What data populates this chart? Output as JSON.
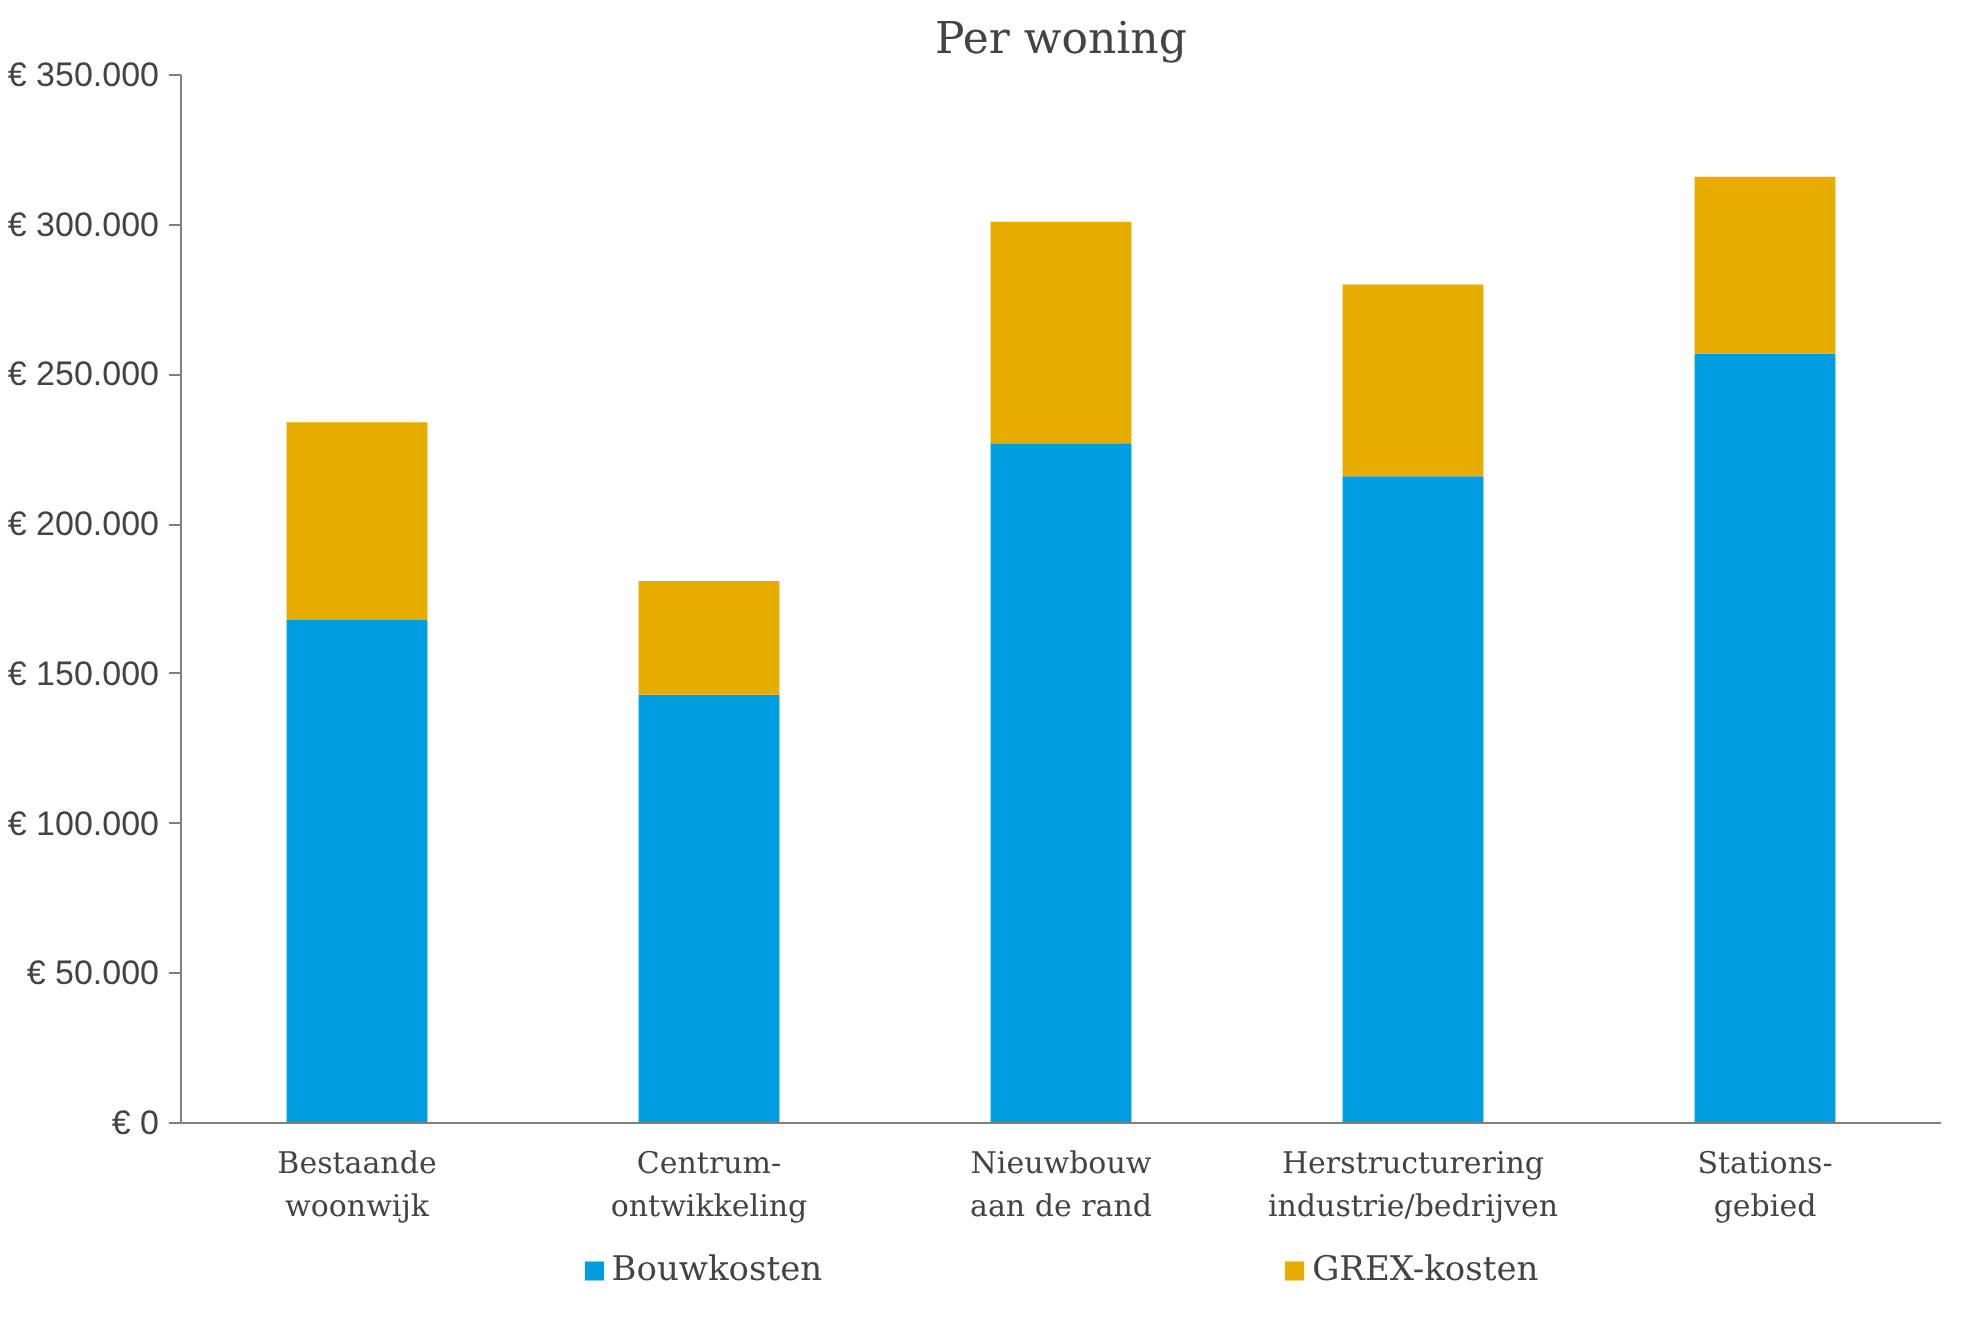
{
  "chart_data": {
    "type": "bar",
    "title": "Per woning",
    "stacked": true,
    "categories": [
      "Bestaande\nwoonwijk",
      "Centrum-\nontwikkeling",
      "Nieuwbouw\naan de rand",
      "Herstructurering\nindustrie/bedrijven",
      "Stations-\ngebied"
    ],
    "series": [
      {
        "name": "Bouwkosten",
        "color": "#009ee0",
        "values": [
          168000,
          143000,
          227000,
          216000,
          257000
        ]
      },
      {
        "name": "GREX-kosten",
        "color": "#e8ac00",
        "values": [
          66000,
          38000,
          74000,
          64000,
          59000
        ]
      }
    ],
    "ylim": [
      0,
      350000
    ],
    "yticks": [
      {
        "value": 0,
        "label": "€ 0"
      },
      {
        "value": 50000,
        "label": "€ 50.000"
      },
      {
        "value": 100000,
        "label": "€ 100.000"
      },
      {
        "value": 150000,
        "label": "€ 150.000"
      },
      {
        "value": 200000,
        "label": "€ 200.000"
      },
      {
        "value": 250000,
        "label": "€ 250.000"
      },
      {
        "value": 300000,
        "label": "€ 300.000"
      },
      {
        "value": 350000,
        "label": "€ 350.000"
      }
    ],
    "grid": false,
    "legend": "bottom"
  }
}
